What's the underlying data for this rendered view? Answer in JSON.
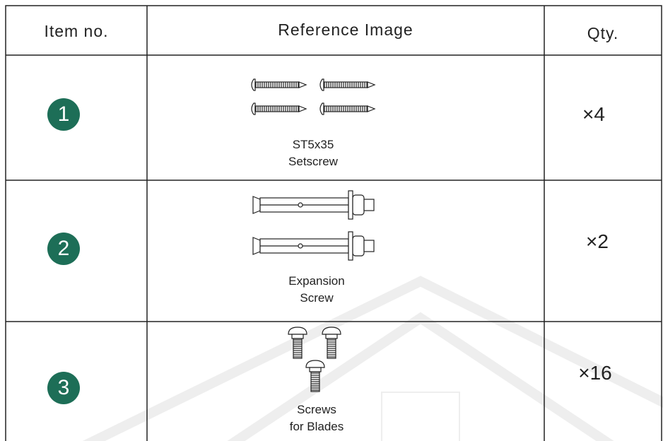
{
  "table": {
    "header": [
      "Item no.",
      "Reference Image",
      "Qty."
    ],
    "rows": [
      {
        "item": "1",
        "caption": [
          "ST5x35",
          "Setscrew"
        ],
        "qty": "×4"
      },
      {
        "item": "2",
        "caption": [
          "Expansion",
          "Screw"
        ],
        "qty": "×2"
      },
      {
        "item": "3",
        "caption": [
          "Screws",
          "for Blades"
        ],
        "qty": "×16"
      }
    ]
  }
}
